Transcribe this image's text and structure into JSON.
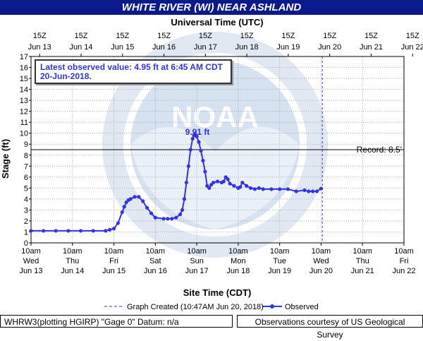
{
  "title": "WHITE RIVER (WI) NEAR ASHLAND",
  "top_axis_title": "Universal Time (UTC)",
  "y_axis_title": "Stage (ft)",
  "x_axis_title": "Site Time (CDT)",
  "latest_line1": "Latest observed value: 4.95 ft at 6:45 AM CDT",
  "latest_line2": "20-Jun-2018.",
  "peak_label": "9.91 ft",
  "record_label": "Record: 8.5'",
  "legend_created": "Graph Created (10:47AM Jun 20, 2018)",
  "legend_observed": "Observed",
  "footer_left": "WHRW3(plotting HGIRP) \"Gage 0\" Datum: n/a",
  "footer_right": "Observations courtesy of US Geological Survey",
  "colors": {
    "title_bg": "#0a1a8c",
    "series": "#3333ee",
    "logo": "#b8cce4"
  },
  "chart_data": {
    "type": "line",
    "x_unit": "days since Jun 13 10am CDT",
    "xlim": [
      0,
      9
    ],
    "ylim": [
      0,
      17
    ],
    "y_ticks": [
      0,
      1,
      2,
      3,
      4,
      5,
      6,
      7,
      8,
      9,
      10,
      11,
      12,
      13,
      14,
      15,
      16,
      17
    ],
    "record_stage": 8.5,
    "graph_created_x": 7.03,
    "bottom_ticks": [
      {
        "time": "10am",
        "day": "Wed",
        "date": "Jun 13"
      },
      {
        "time": "10am",
        "day": "Thu",
        "date": "Jun 14"
      },
      {
        "time": "10am",
        "day": "Fri",
        "date": "Jun 15"
      },
      {
        "time": "10am",
        "day": "Sat",
        "date": "Jun 16"
      },
      {
        "time": "10am",
        "day": "Sun",
        "date": "Jun 17"
      },
      {
        "time": "10am",
        "day": "Mon",
        "date": "Jun 18"
      },
      {
        "time": "10am",
        "day": "Tue",
        "date": "Jun 19"
      },
      {
        "time": "10am",
        "day": "Wed",
        "date": "Jun 20"
      },
      {
        "time": "10am",
        "day": "Thu",
        "date": "Jun 21"
      },
      {
        "time": "10am",
        "day": "Fri",
        "date": "Jun 22"
      }
    ],
    "top_ticks": [
      {
        "time": "15Z",
        "date": "Jun 13"
      },
      {
        "time": "15Z",
        "date": "Jun 14"
      },
      {
        "time": "15Z",
        "date": "Jun 15"
      },
      {
        "time": "15Z",
        "date": "Jun 16"
      },
      {
        "time": "15Z",
        "date": "Jun 17"
      },
      {
        "time": "15Z",
        "date": "Jun 18"
      },
      {
        "time": "15Z",
        "date": "Jun 19"
      },
      {
        "time": "15Z",
        "date": "Jun 20"
      },
      {
        "time": "15Z",
        "date": "Jun 21"
      },
      {
        "time": "15Z",
        "date": "Jun 22"
      }
    ],
    "series": [
      {
        "name": "Observed",
        "x": [
          0,
          0.3,
          0.6,
          0.9,
          1.2,
          1.5,
          1.8,
          1.9,
          2.0,
          2.1,
          2.2,
          2.25,
          2.3,
          2.35,
          2.4,
          2.5,
          2.6,
          2.7,
          2.8,
          2.9,
          3.0,
          3.2,
          3.3,
          3.4,
          3.5,
          3.6,
          3.65,
          3.7,
          3.75,
          3.8,
          3.85,
          3.9,
          3.93,
          3.95,
          3.98,
          4.0,
          4.05,
          4.1,
          4.15,
          4.2,
          4.25,
          4.3,
          4.35,
          4.4,
          4.5,
          4.6,
          4.65,
          4.7,
          4.75,
          4.8,
          4.9,
          5.0,
          5.05,
          5.1,
          5.2,
          5.3,
          5.4,
          5.5,
          5.6,
          5.8,
          6.0,
          6.2,
          6.4,
          6.6,
          6.7,
          6.8,
          6.9,
          7.0
        ],
        "y": [
          1.1,
          1.1,
          1.1,
          1.1,
          1.1,
          1.1,
          1.1,
          1.2,
          1.3,
          1.8,
          2.8,
          3.3,
          3.7,
          3.9,
          4.0,
          4.2,
          4.2,
          3.8,
          3.2,
          2.7,
          2.3,
          2.2,
          2.2,
          2.2,
          2.3,
          2.6,
          3.0,
          4.0,
          5.5,
          7.0,
          8.5,
          9.5,
          9.8,
          9.91,
          9.8,
          9.7,
          9.2,
          8.4,
          7.5,
          6.5,
          5.2,
          5.0,
          5.3,
          5.5,
          5.6,
          5.5,
          5.6,
          6.0,
          5.8,
          5.4,
          5.2,
          5.0,
          5.1,
          5.5,
          5.2,
          5.0,
          4.9,
          5.0,
          4.9,
          4.9,
          4.9,
          4.9,
          4.7,
          4.8,
          4.7,
          4.7,
          4.7,
          4.95
        ]
      }
    ]
  }
}
